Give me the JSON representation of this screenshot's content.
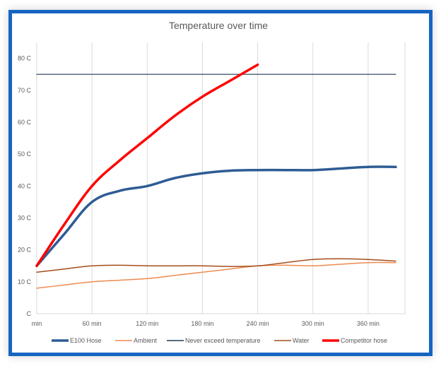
{
  "chart_data": {
    "type": "line",
    "title": "Temperature over time",
    "x_ticks": [
      "min",
      "60 min",
      "120 min",
      "180 min",
      "240 min",
      "300 min",
      "360 min"
    ],
    "x_tick_values": [
      0,
      60,
      120,
      180,
      240,
      300,
      360
    ],
    "y_ticks": [
      "C",
      "10 C",
      "20 C",
      "30 C",
      "40 C",
      "50 C",
      "60 C",
      "70 C",
      "80 C"
    ],
    "y_tick_values": [
      0,
      10,
      20,
      30,
      40,
      50,
      60,
      70,
      80
    ],
    "xlim": [
      0,
      400
    ],
    "ylim": [
      0,
      85
    ],
    "grid": "vertical",
    "legend_position": "bottom",
    "series": [
      {
        "name": "E100 Hose",
        "color": "#2e5c94",
        "width": 3.5,
        "x": [
          0,
          30,
          60,
          90,
          120,
          150,
          180,
          210,
          240,
          270,
          300,
          330,
          360,
          390
        ],
        "y": [
          15,
          25,
          35,
          38.5,
          40,
          42.5,
          44,
          44.8,
          45,
          45,
          45,
          45.5,
          46,
          46
        ]
      },
      {
        "name": "Ambient",
        "color": "#ed8a4e",
        "width": 1.5,
        "x": [
          0,
          30,
          60,
          90,
          120,
          150,
          180,
          210,
          240,
          270,
          300,
          330,
          360,
          390
        ],
        "y": [
          8,
          9,
          10,
          10.5,
          11,
          12,
          13,
          14,
          15,
          15.2,
          15,
          15.5,
          16,
          16
        ]
      },
      {
        "name": "Never exceed temperature",
        "color": "#1f3a5a",
        "width": 1.2,
        "x": [
          0,
          390
        ],
        "y": [
          75,
          75
        ]
      },
      {
        "name": "Water",
        "color": "#a44d1c",
        "width": 1.5,
        "x": [
          0,
          30,
          60,
          90,
          120,
          150,
          180,
          210,
          240,
          270,
          300,
          330,
          360,
          390
        ],
        "y": [
          13,
          14,
          15,
          15.2,
          15,
          15,
          15,
          14.8,
          15,
          16,
          17,
          17.2,
          17,
          16.5
        ]
      },
      {
        "name": "Competitor hose",
        "color": "#ff0000",
        "width": 3.5,
        "x": [
          0,
          30,
          60,
          90,
          120,
          150,
          180,
          210,
          240
        ],
        "y": [
          15,
          28,
          40,
          48,
          55,
          62,
          68,
          73,
          78
        ]
      }
    ]
  }
}
